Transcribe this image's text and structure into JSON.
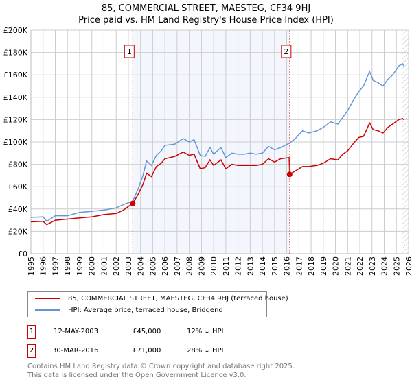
{
  "chart_data": {
    "type": "line",
    "title": "85, COMMERCIAL STREET, MAESTEG, CF34 9HJ",
    "subtitle": "Price paid vs. HM Land Registry's House Price Index (HPI)",
    "xlim": [
      1995,
      2026
    ],
    "ylim": [
      0,
      200000
    ],
    "x_ticks": [
      "1995",
      "1996",
      "1997",
      "1998",
      "1999",
      "2000",
      "2001",
      "2002",
      "2003",
      "2004",
      "2005",
      "2006",
      "2007",
      "2008",
      "2009",
      "2010",
      "2011",
      "2012",
      "2013",
      "2014",
      "2015",
      "2016",
      "2017",
      "2018",
      "2019",
      "2020",
      "2021",
      "2022",
      "2023",
      "2024",
      "2025",
      "2026"
    ],
    "y_ticks": [
      {
        "v": 0,
        "l": "£0"
      },
      {
        "v": 20000,
        "l": "£20K"
      },
      {
        "v": 40000,
        "l": "£40K"
      },
      {
        "v": 60000,
        "l": "£60K"
      },
      {
        "v": 80000,
        "l": "£80K"
      },
      {
        "v": 100000,
        "l": "£100K"
      },
      {
        "v": 120000,
        "l": "£120K"
      },
      {
        "v": 140000,
        "l": "£140K"
      },
      {
        "v": 160000,
        "l": "£160K"
      },
      {
        "v": 180000,
        "l": "£180K"
      },
      {
        "v": 200000,
        "l": "£200K"
      }
    ],
    "grid": true,
    "series": [
      {
        "name": "85, COMMERCIAL STREET, MAESTEG, CF34 9HJ (terraced house)",
        "color": "#cc0000",
        "x": [
          1995,
          1996,
          1996.3,
          1997,
          1998,
          1999,
          2000,
          2001,
          2002,
          2002.6,
          2003.36,
          2003.8,
          2004.2,
          2004.5,
          2004.9,
          2005.3,
          2005.7,
          2006,
          2006.8,
          2007.5,
          2008,
          2008.4,
          2008.9,
          2009.3,
          2009.7,
          2010,
          2010.6,
          2011,
          2011.5,
          2012,
          2012.5,
          2013,
          2013.5,
          2014,
          2014.5,
          2015,
          2015.5,
          2016.2,
          2016.24,
          2016.7,
          2017.3,
          2017.8,
          2018.5,
          2019,
          2019.6,
          2020.2,
          2020.6,
          2021,
          2021.5,
          2021.9,
          2022.3,
          2022.6,
          2022.8,
          2023.1,
          2023.5,
          2023.9,
          2024.3,
          2024.7,
          2025.2,
          2025.5,
          2025.6
        ],
        "y": [
          28500,
          29000,
          26000,
          30000,
          31000,
          32000,
          33000,
          35000,
          36000,
          39000,
          45000,
          53000,
          62000,
          72000,
          69000,
          78000,
          81000,
          85000,
          87000,
          91000,
          88000,
          89000,
          76000,
          77000,
          84000,
          79000,
          84000,
          76000,
          80000,
          79000,
          79000,
          79000,
          79000,
          80000,
          85000,
          82000,
          85000,
          86000,
          71000,
          74000,
          78000,
          78000,
          79000,
          81000,
          85000,
          84000,
          89000,
          92000,
          99000,
          104000,
          105000,
          112000,
          117000,
          111000,
          110000,
          108000,
          113000,
          116000,
          120000,
          121000,
          120000
        ]
      },
      {
        "name": "HPI: Average price, terraced house, Bridgend",
        "color": "#6495d8",
        "x": [
          1995,
          1996,
          1996.3,
          1997,
          1998,
          1999,
          2000,
          2001,
          2002,
          2002.6,
          2003.36,
          2003.8,
          2004.2,
          2004.5,
          2004.9,
          2005.3,
          2005.7,
          2006,
          2006.8,
          2007.5,
          2008,
          2008.4,
          2008.9,
          2009.3,
          2009.7,
          2010,
          2010.6,
          2011,
          2011.5,
          2012,
          2012.5,
          2013,
          2013.5,
          2014,
          2014.5,
          2015,
          2015.5,
          2016.24,
          2016.7,
          2017.3,
          2017.8,
          2018.5,
          2019,
          2019.6,
          2020.2,
          2020.6,
          2021,
          2021.5,
          2021.9,
          2022.3,
          2022.6,
          2022.8,
          2023.1,
          2023.5,
          2023.9,
          2024.3,
          2024.7,
          2025.2,
          2025.5,
          2025.6
        ],
        "y": [
          32500,
          33000,
          29000,
          34000,
          34000,
          37000,
          38000,
          39000,
          41000,
          44000,
          47000,
          58000,
          70000,
          83000,
          79000,
          88000,
          92000,
          97000,
          98000,
          103000,
          100000,
          102000,
          88000,
          87000,
          95000,
          89000,
          95000,
          86000,
          90000,
          89000,
          89000,
          90000,
          89000,
          90000,
          96000,
          93000,
          95000,
          99000,
          103000,
          110000,
          108000,
          110000,
          113000,
          118000,
          116000,
          122000,
          128000,
          138000,
          145000,
          150000,
          158000,
          163000,
          155000,
          153000,
          150000,
          156000,
          160000,
          168000,
          170000,
          168000
        ]
      }
    ],
    "sales": [
      {
        "label": "1",
        "x": 2003.36,
        "y": 45000
      },
      {
        "label": "2",
        "x": 2016.24,
        "y": 71000
      }
    ],
    "shaded_range": [
      2003.36,
      2016.24
    ],
    "forecast_hatch_from": 2025.5,
    "legend_placement": "bottom"
  },
  "legend": {
    "property": "85, COMMERCIAL STREET, MAESTEG, CF34 9HJ (terraced house)",
    "hpi": "HPI: Average price, terraced house, Bridgend"
  },
  "transactions": [
    {
      "num": "1",
      "date": "12-MAY-2003",
      "price": "£45,000",
      "delta": "12% ↓ HPI"
    },
    {
      "num": "2",
      "date": "30-MAR-2016",
      "price": "£71,000",
      "delta": "28% ↓ HPI"
    }
  ],
  "footer": {
    "line1": "Contains HM Land Registry data © Crown copyright and database right 2025.",
    "line2": "This data is licensed under the Open Government Licence v3.0."
  }
}
